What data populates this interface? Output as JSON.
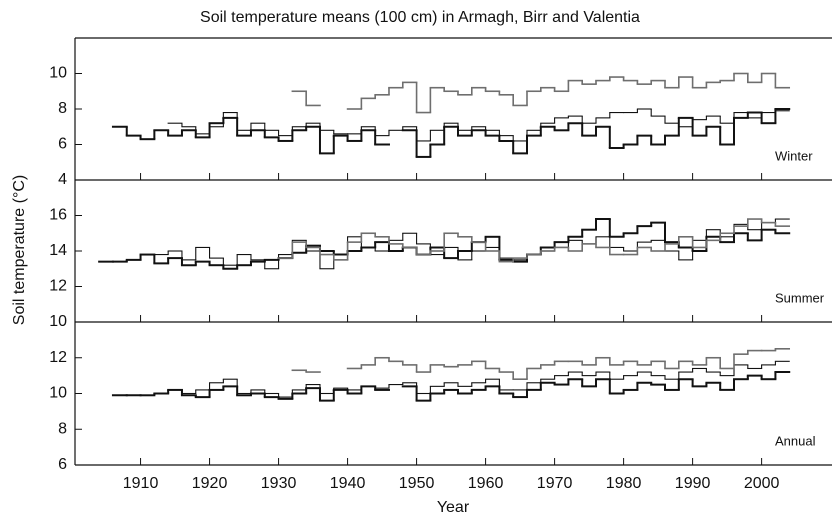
{
  "chart_data": [
    {
      "type": "line",
      "title": "Soil temperature means (100 cm) in Armagh, Birr and Valentia",
      "annotation": "Winter",
      "x": [
        1904,
        1906,
        1908,
        1910,
        1912,
        1914,
        1916,
        1918,
        1920,
        1922,
        1924,
        1926,
        1928,
        1930,
        1932,
        1934,
        1936,
        1938,
        1940,
        1942,
        1944,
        1946,
        1948,
        1950,
        1952,
        1954,
        1956,
        1958,
        1960,
        1962,
        1964,
        1966,
        1968,
        1970,
        1972,
        1974,
        1976,
        1978,
        1980,
        1982,
        1984,
        1986,
        1988,
        1990,
        1992,
        1994,
        1996,
        1998,
        2000,
        2002
      ],
      "xlim": [
        1900.5,
        2010.2
      ],
      "ylim": [
        4,
        12
      ],
      "yticks": [
        4,
        6,
        8,
        10
      ],
      "series": [
        {
          "color": "#111111",
          "line_width": 2,
          "values": [
            null,
            7.0,
            6.5,
            6.3,
            6.8,
            6.5,
            6.8,
            6.4,
            7.2,
            7.5,
            6.5,
            6.8,
            6.4,
            6.2,
            6.8,
            7.0,
            5.5,
            6.5,
            6.2,
            6.8,
            6.0,
            null,
            6.8,
            5.3,
            6.0,
            7.0,
            6.5,
            6.8,
            6.5,
            6.2,
            5.5,
            6.5,
            7.0,
            6.8,
            7.2,
            6.5,
            7.0,
            5.8,
            6.0,
            6.5,
            6.0,
            6.5,
            7.5,
            6.5,
            7.0,
            6.0,
            7.5,
            7.8,
            7.2,
            8.0
          ]
        },
        {
          "color": "#111111",
          "line_width": 1.1,
          "values": [
            null,
            null,
            null,
            null,
            null,
            7.2,
            7.0,
            6.6,
            7.0,
            7.8,
            6.8,
            7.2,
            6.8,
            6.5,
            7.0,
            7.2,
            6.8,
            6.6,
            6.6,
            7.0,
            6.5,
            6.8,
            7.0,
            6.2,
            6.8,
            7.2,
            6.8,
            7.0,
            6.8,
            6.5,
            6.2,
            6.8,
            7.2,
            7.5,
            7.6,
            7.2,
            7.5,
            7.8,
            7.8,
            8.0,
            7.6,
            7.2,
            7.0,
            7.4,
            7.6,
            7.2,
            7.8,
            7.5,
            7.8,
            7.9
          ]
        },
        {
          "color": "#6e6e6e",
          "line_width": 1.6,
          "values": [
            null,
            null,
            null,
            null,
            null,
            null,
            null,
            null,
            null,
            null,
            null,
            null,
            null,
            null,
            9.0,
            8.2,
            null,
            null,
            8.0,
            8.6,
            8.8,
            9.2,
            9.5,
            7.8,
            9.2,
            9.0,
            8.8,
            9.2,
            9.0,
            8.8,
            8.2,
            9.0,
            9.2,
            9.0,
            9.6,
            9.4,
            9.6,
            9.8,
            9.6,
            9.4,
            9.6,
            9.2,
            9.8,
            9.2,
            9.5,
            9.6,
            10.0,
            9.5,
            10.0,
            9.2
          ]
        }
      ]
    },
    {
      "type": "line",
      "ylabel": "Soil temperature (°C)",
      "annotation": "Summer",
      "x": [
        1904,
        1906,
        1908,
        1910,
        1912,
        1914,
        1916,
        1918,
        1920,
        1922,
        1924,
        1926,
        1928,
        1930,
        1932,
        1934,
        1936,
        1938,
        1940,
        1942,
        1944,
        1946,
        1948,
        1950,
        1952,
        1954,
        1956,
        1958,
        1960,
        1962,
        1964,
        1966,
        1968,
        1970,
        1972,
        1974,
        1976,
        1978,
        1980,
        1982,
        1984,
        1986,
        1988,
        1990,
        1992,
        1994,
        1996,
        1998,
        2000,
        2002
      ],
      "xlim": [
        1900.5,
        2010.2
      ],
      "ylim": [
        10,
        18
      ],
      "yticks": [
        10,
        12,
        14,
        16
      ],
      "series": [
        {
          "color": "#111111",
          "line_width": 2,
          "values": [
            13.4,
            13.4,
            13.5,
            13.8,
            13.3,
            13.6,
            13.2,
            13.4,
            13.2,
            13.0,
            13.2,
            13.4,
            13.5,
            13.6,
            13.9,
            14.3,
            14.0,
            13.8,
            14.0,
            14.2,
            14.5,
            14.0,
            14.2,
            13.8,
            14.2,
            13.6,
            14.0,
            14.5,
            14.8,
            13.5,
            13.4,
            13.8,
            14.2,
            14.5,
            14.8,
            15.2,
            15.8,
            14.8,
            15.0,
            15.4,
            15.6,
            14.5,
            14.2,
            14.0,
            14.8,
            14.5,
            15.0,
            14.6,
            15.2,
            15.0
          ]
        },
        {
          "color": "#111111",
          "line_width": 1.1,
          "values": [
            null,
            null,
            null,
            null,
            13.8,
            14.0,
            13.5,
            14.2,
            13.6,
            13.2,
            13.8,
            13.5,
            13.0,
            13.8,
            14.6,
            14.0,
            13.0,
            13.5,
            14.8,
            14.2,
            14.0,
            14.6,
            15.0,
            14.4,
            13.8,
            14.2,
            13.5,
            14.0,
            14.2,
            13.6,
            13.5,
            13.8,
            14.0,
            14.2,
            14.6,
            14.4,
            14.8,
            14.2,
            14.0,
            14.5,
            14.6,
            14.0,
            13.5,
            14.6,
            15.2,
            14.8,
            15.5,
            15.2,
            15.6,
            15.8
          ]
        },
        {
          "color": "#6e6e6e",
          "line_width": 1.6,
          "values": [
            null,
            null,
            null,
            null,
            null,
            null,
            null,
            null,
            null,
            null,
            null,
            null,
            null,
            13.6,
            14.5,
            14.2,
            13.8,
            13.5,
            14.5,
            15.0,
            14.8,
            14.4,
            14.2,
            13.8,
            14.0,
            15.0,
            14.8,
            14.5,
            14.0,
            13.4,
            13.6,
            13.8,
            14.0,
            14.2,
            14.0,
            14.4,
            14.2,
            13.8,
            13.8,
            14.2,
            14.0,
            14.4,
            14.8,
            14.2,
            14.6,
            15.0,
            15.4,
            15.8,
            15.6,
            15.4
          ]
        }
      ]
    },
    {
      "type": "line",
      "xlabel": "Year",
      "annotation": "Annual",
      "x": [
        1904,
        1906,
        1908,
        1910,
        1912,
        1914,
        1916,
        1918,
        1920,
        1922,
        1924,
        1926,
        1928,
        1930,
        1932,
        1934,
        1936,
        1938,
        1940,
        1942,
        1944,
        1946,
        1948,
        1950,
        1952,
        1954,
        1956,
        1958,
        1960,
        1962,
        1964,
        1966,
        1968,
        1970,
        1972,
        1974,
        1976,
        1978,
        1980,
        1982,
        1984,
        1986,
        1988,
        1990,
        1992,
        1994,
        1996,
        1998,
        2000,
        2002
      ],
      "xlim": [
        1900.5,
        2010.2
      ],
      "xticks": [
        1910,
        1920,
        1930,
        1940,
        1950,
        1960,
        1970,
        1980,
        1990,
        2000
      ],
      "ylim": [
        6,
        14
      ],
      "yticks": [
        6,
        8,
        10,
        12
      ],
      "series": [
        {
          "color": "#111111",
          "line_width": 2,
          "values": [
            null,
            9.9,
            9.9,
            9.9,
            10.0,
            10.2,
            9.9,
            9.8,
            10.2,
            10.4,
            9.9,
            10.0,
            9.8,
            9.7,
            10.0,
            10.3,
            9.6,
            10.2,
            10.0,
            10.4,
            10.2,
            null,
            10.4,
            9.6,
            10.0,
            10.2,
            10.0,
            10.2,
            10.4,
            10.0,
            9.8,
            10.2,
            10.6,
            10.5,
            10.8,
            10.4,
            10.8,
            10.0,
            10.2,
            10.6,
            10.5,
            10.2,
            10.8,
            10.4,
            10.6,
            10.2,
            10.8,
            11.0,
            10.8,
            11.2
          ]
        },
        {
          "color": "#111111",
          "line_width": 1.1,
          "values": [
            null,
            null,
            null,
            null,
            null,
            10.2,
            10.0,
            10.2,
            10.6,
            10.8,
            10.0,
            10.2,
            10.0,
            9.8,
            10.2,
            10.5,
            10.0,
            10.3,
            10.2,
            10.4,
            10.3,
            10.5,
            10.6,
            10.0,
            10.4,
            10.6,
            10.4,
            10.6,
            10.8,
            10.2,
            10.2,
            10.6,
            10.8,
            11.0,
            11.2,
            11.0,
            11.2,
            10.8,
            11.0,
            11.2,
            11.0,
            10.8,
            11.2,
            11.4,
            11.2,
            11.0,
            11.6,
            11.4,
            11.6,
            11.8
          ]
        },
        {
          "color": "#6e6e6e",
          "line_width": 1.6,
          "values": [
            null,
            null,
            null,
            null,
            null,
            null,
            null,
            null,
            null,
            null,
            null,
            null,
            null,
            null,
            11.3,
            11.2,
            null,
            null,
            11.4,
            11.6,
            12.0,
            11.8,
            11.6,
            11.2,
            11.6,
            11.5,
            11.6,
            11.8,
            11.4,
            11.2,
            10.8,
            11.4,
            11.6,
            11.8,
            11.8,
            11.6,
            12.0,
            11.6,
            11.8,
            11.6,
            11.8,
            11.4,
            11.8,
            11.6,
            12.0,
            11.4,
            12.2,
            12.4,
            12.4,
            12.5
          ]
        }
      ]
    }
  ]
}
